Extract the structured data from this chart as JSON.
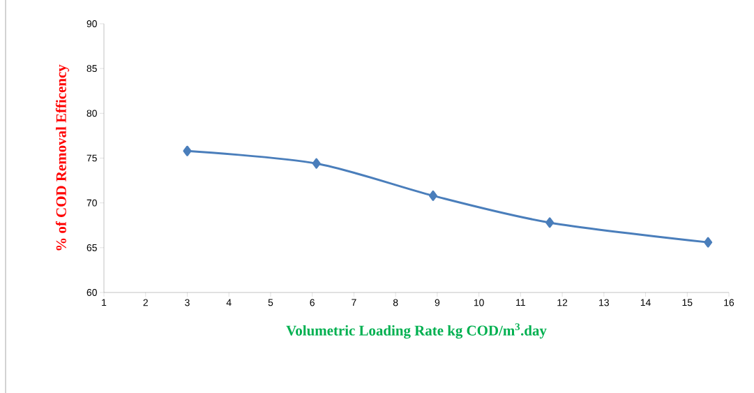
{
  "chart_data": {
    "type": "line",
    "xlabel": "Volumetric Loading Rate kg COD/m$^{3}$.day",
    "ylabel": "% of COD Removal Efficency",
    "x": [
      3.0,
      6.1,
      8.9,
      11.7,
      15.5
    ],
    "series": [
      {
        "color": "#4a7ebb",
        "values": [
          75.8,
          74.4,
          70.8,
          67.8,
          65.6
        ]
      }
    ],
    "xlim": [
      1,
      16
    ],
    "xticks": [
      1,
      2,
      3,
      4,
      5,
      6,
      7,
      8,
      9,
      10,
      11,
      12,
      13,
      14,
      15,
      16
    ],
    "ylim": [
      60,
      90
    ],
    "yticks": [
      60,
      65,
      70,
      75,
      80,
      85,
      90
    ],
    "marker": "diamond",
    "line_style": "solid"
  }
}
